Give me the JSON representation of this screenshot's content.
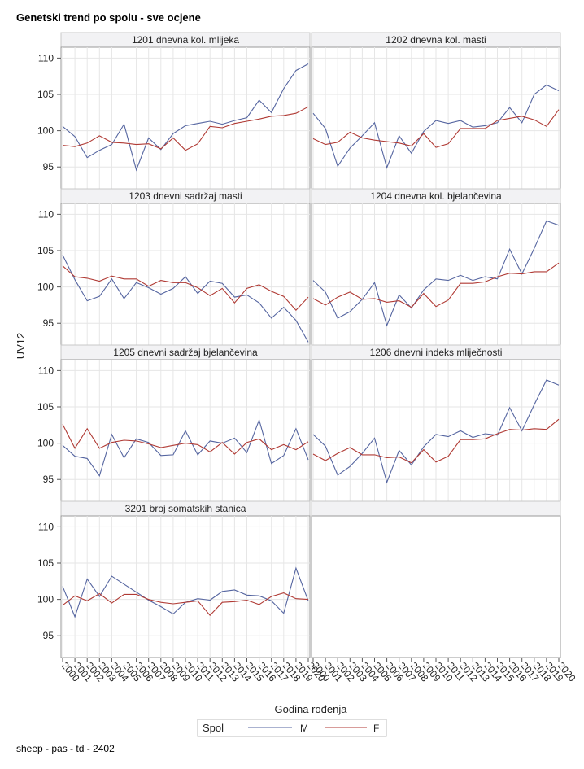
{
  "title": "Genetski trend po spolu - sve ocjene",
  "footnote": "sheep - pas - td - 2402",
  "chart_data": {
    "type": "line",
    "xlabel": "Godina rođenja",
    "ylabel": "UV12",
    "ylim": [
      92,
      111.5
    ],
    "yticks": [
      95,
      100,
      105,
      110
    ],
    "x": [
      2000,
      2001,
      2002,
      2003,
      2004,
      2005,
      2006,
      2007,
      2008,
      2009,
      2010,
      2011,
      2012,
      2013,
      2014,
      2015,
      2016,
      2017,
      2018,
      2019,
      2020
    ],
    "xtick_labels": [
      "2000",
      "2001",
      "2002",
      "2003",
      "2004",
      "2005",
      "2006",
      "2007",
      "2008",
      "2009",
      "2010",
      "2011",
      "2012",
      "2013",
      "2014",
      "2015",
      "2016",
      "2017",
      "2018",
      "2019",
      "2020"
    ],
    "legend": {
      "title": "Spol",
      "position": "bottom"
    },
    "series_styles": [
      {
        "name": "M",
        "color": "#5565a0"
      },
      {
        "name": "F",
        "color": "#b03a34"
      }
    ],
    "panels": [
      {
        "title": "1201 dnevna kol. mlijeka",
        "M": [
          100.6,
          99.2,
          96.3,
          97.3,
          98.1,
          100.9,
          94.6,
          99.0,
          97.4,
          99.6,
          100.7,
          101.0,
          101.3,
          100.9,
          101.4,
          101.8,
          104.2,
          102.5,
          105.8,
          108.3,
          109.2
        ],
        "F": [
          98.0,
          97.8,
          98.3,
          99.3,
          98.4,
          98.3,
          98.1,
          98.2,
          97.5,
          99.0,
          97.3,
          98.2,
          100.6,
          100.4,
          101.0,
          101.3,
          101.6,
          102.0,
          102.1,
          102.4,
          103.3
        ]
      },
      {
        "title": "1202 dnevna kol. masti",
        "M": [
          102.4,
          100.3,
          95.1,
          97.6,
          99.3,
          101.1,
          94.9,
          99.3,
          96.9,
          99.9,
          101.4,
          101.0,
          101.4,
          100.5,
          100.7,
          101.1,
          103.2,
          101.1,
          105.0,
          106.3,
          105.5
        ],
        "F": [
          98.9,
          98.1,
          98.4,
          99.8,
          99.0,
          98.7,
          98.5,
          98.3,
          97.9,
          99.6,
          97.7,
          98.2,
          100.3,
          100.3,
          100.3,
          101.4,
          101.7,
          102.0,
          101.5,
          100.6,
          102.9
        ]
      },
      {
        "title": "1203 dnevni sadržaj masti",
        "M": [
          104.4,
          101.0,
          98.1,
          98.7,
          101.1,
          98.4,
          100.6,
          99.9,
          99.0,
          99.8,
          101.4,
          99.1,
          100.8,
          100.5,
          98.6,
          98.9,
          97.8,
          95.7,
          97.2,
          95.4,
          92.4
        ],
        "F": [
          102.9,
          101.4,
          101.2,
          100.8,
          101.5,
          101.1,
          101.1,
          100.1,
          100.9,
          100.6,
          100.6,
          99.9,
          98.8,
          99.8,
          97.8,
          99.8,
          100.3,
          99.4,
          98.7,
          96.8,
          98.6
        ]
      },
      {
        "title": "1204 dnevna kol. bjelančevina",
        "M": [
          100.9,
          99.3,
          95.7,
          96.6,
          98.3,
          100.6,
          94.7,
          98.9,
          97.1,
          99.6,
          101.1,
          100.9,
          101.6,
          100.9,
          101.4,
          101.1,
          105.2,
          101.8,
          105.3,
          109.1,
          108.5
        ],
        "F": [
          98.4,
          97.5,
          98.6,
          99.3,
          98.3,
          98.4,
          97.9,
          98.1,
          97.2,
          99.1,
          97.3,
          98.2,
          100.5,
          100.5,
          100.7,
          101.4,
          101.9,
          101.8,
          102.1,
          102.1,
          103.3
        ]
      },
      {
        "title": "1205 dnevni sadržaj bjelančevina",
        "M": [
          99.7,
          98.2,
          97.9,
          95.5,
          101.2,
          98.0,
          100.6,
          100.1,
          98.3,
          98.4,
          101.7,
          98.4,
          100.3,
          100.0,
          100.7,
          98.7,
          103.2,
          97.2,
          98.3,
          102.0,
          97.7
        ],
        "F": [
          102.6,
          99.3,
          102.0,
          99.3,
          100.1,
          100.4,
          100.3,
          99.9,
          99.4,
          99.7,
          100.0,
          99.8,
          98.8,
          100.1,
          98.5,
          100.1,
          100.6,
          99.1,
          99.8,
          99.1,
          100.2
        ]
      },
      {
        "title": "1206 dnevni indeks mliječnosti",
        "M": [
          101.2,
          99.6,
          95.6,
          96.8,
          98.6,
          100.7,
          94.6,
          99.0,
          97.0,
          99.5,
          101.2,
          100.9,
          101.7,
          100.8,
          101.3,
          101.1,
          104.9,
          101.7,
          105.3,
          108.7,
          108.0
        ],
        "F": [
          98.5,
          97.6,
          98.6,
          99.4,
          98.4,
          98.4,
          98.0,
          98.1,
          97.3,
          99.1,
          97.4,
          98.2,
          100.5,
          100.5,
          100.6,
          101.3,
          101.9,
          101.8,
          102.0,
          101.9,
          103.3
        ]
      },
      {
        "title": "3201 broj somatskih stanica",
        "M": [
          101.8,
          97.6,
          102.8,
          100.4,
          103.2,
          102.1,
          101.0,
          99.9,
          99.0,
          98.0,
          99.6,
          100.1,
          99.9,
          101.1,
          101.3,
          100.6,
          100.5,
          99.8,
          98.1,
          104.3,
          99.8
        ],
        "F": [
          99.2,
          100.5,
          99.8,
          100.8,
          99.5,
          100.7,
          100.7,
          100.0,
          99.6,
          99.4,
          99.6,
          99.8,
          97.8,
          99.6,
          99.7,
          99.9,
          99.3,
          100.4,
          100.9,
          100.1,
          100.0
        ]
      },
      {
        "title": "",
        "empty": true
      }
    ]
  }
}
